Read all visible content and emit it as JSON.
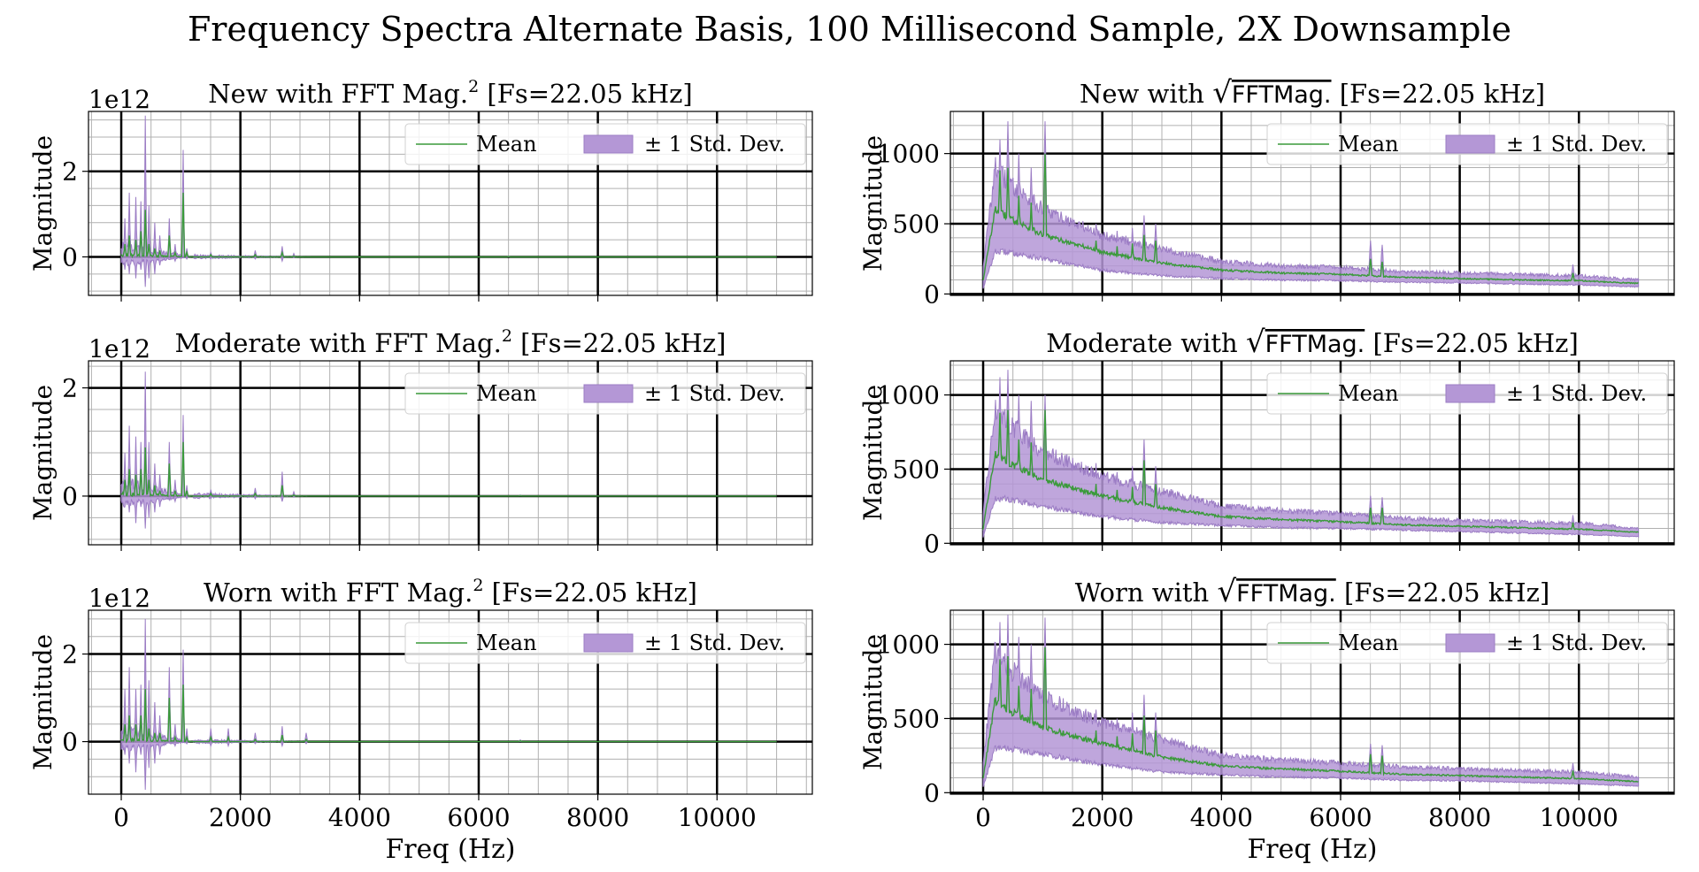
{
  "figure": {
    "title": "Frequency Spectra Alternate Basis, 100 Millisecond Sample, 2X Downsample"
  },
  "colors": {
    "mean_line": "#3a9a3a",
    "band_fill": "#b497d6",
    "band_edge": "#9b7cc4",
    "major_grid": "#000000",
    "minor_grid": "#b0b0b0"
  },
  "chart_data": [
    {
      "type": "area",
      "title_prefix": "New with FFT Mag.",
      "title_sup": "2",
      "title_sqrt": "",
      "title_suffix": " [Fs=22.05 kHz]",
      "ylabel": "Magnitude",
      "xlabel": "",
      "offset_text": "1e12",
      "xlim": [
        -550,
        11600
      ],
      "ylim": [
        -0.9,
        3.4
      ],
      "xticks": [
        0,
        2000,
        4000,
        6000,
        8000,
        10000
      ],
      "yticks": [
        0,
        2
      ],
      "ytick_labels": [
        "0",
        "2"
      ],
      "grid": true,
      "legend": "upper right",
      "legend_entries": [
        "Mean",
        "± 1 Std. Dev."
      ],
      "peaks": [
        {
          "x": 0,
          "mean": 0
        },
        {
          "x": 60,
          "mean": 0.3,
          "upper": 0.9,
          "lower": -0.3
        },
        {
          "x": 140,
          "mean": 0.5,
          "upper": 1.5,
          "lower": -0.4
        },
        {
          "x": 250,
          "mean": 0.4,
          "upper": 1.4,
          "lower": -0.5
        },
        {
          "x": 330,
          "mean": 0.6,
          "upper": 1.3,
          "lower": -0.3
        },
        {
          "x": 400,
          "mean": 1.1,
          "upper": 3.3,
          "lower": -0.7
        },
        {
          "x": 470,
          "mean": 0.3,
          "upper": 1.2,
          "lower": -0.5
        },
        {
          "x": 560,
          "mean": 0.2,
          "upper": 0.8,
          "lower": -0.4
        },
        {
          "x": 650,
          "mean": 0.15,
          "upper": 0.5,
          "lower": -0.2
        },
        {
          "x": 810,
          "mean": 0.5,
          "upper": 0.9,
          "lower": 0.1
        },
        {
          "x": 900,
          "mean": 0.1,
          "upper": 0.3,
          "lower": -0.1
        },
        {
          "x": 1040,
          "mean": 1.5,
          "upper": 2.5,
          "lower": 0.2
        },
        {
          "x": 1100,
          "mean": 0.1,
          "upper": 0.2,
          "lower": -0.05
        },
        {
          "x": 1500,
          "mean": 0.05,
          "upper": 0.1,
          "lower": -0.05
        },
        {
          "x": 2250,
          "mean": 0.05,
          "upper": 0.15,
          "lower": -0.05
        },
        {
          "x": 2700,
          "mean": 0.1,
          "upper": 0.25,
          "lower": -0.1
        },
        {
          "x": 2900,
          "mean": 0.02,
          "upper": 0.08,
          "lower": -0.02
        },
        {
          "x": 6500,
          "mean": 0.01,
          "upper": 0.02,
          "lower": 0
        },
        {
          "x": 11000,
          "mean": 0,
          "upper": 0,
          "lower": 0
        }
      ]
    },
    {
      "type": "area",
      "title_prefix": "New with ",
      "title_sup": "",
      "title_sqrt": "FFTMag.",
      "title_suffix": " [Fs=22.05 kHz]",
      "ylabel": "Magnitude",
      "xlabel": "",
      "offset_text": "",
      "xlim": [
        -550,
        11600
      ],
      "ylim": [
        -10,
        1300
      ],
      "xticks": [
        0,
        2000,
        4000,
        6000,
        8000,
        10000
      ],
      "yticks": [
        0,
        500,
        1000
      ],
      "ytick_labels": [
        "0",
        "500",
        "1000"
      ],
      "grid": true,
      "legend": "upper right",
      "legend_entries": [
        "Mean",
        "± 1 Std. Dev."
      ],
      "envelope": [
        {
          "x": 0,
          "mean": 100,
          "upper": 200,
          "lower": 40
        },
        {
          "x": 200,
          "mean": 600,
          "upper": 900,
          "lower": 300
        },
        {
          "x": 400,
          "mean": 550,
          "upper": 800,
          "lower": 300
        },
        {
          "x": 1000,
          "mean": 420,
          "upper": 600,
          "lower": 250
        },
        {
          "x": 2000,
          "mean": 300,
          "upper": 420,
          "lower": 170
        },
        {
          "x": 3000,
          "mean": 220,
          "upper": 320,
          "lower": 130
        },
        {
          "x": 4000,
          "mean": 170,
          "upper": 230,
          "lower": 110
        },
        {
          "x": 5000,
          "mean": 150,
          "upper": 200,
          "lower": 100
        },
        {
          "x": 6000,
          "mean": 140,
          "upper": 190,
          "lower": 95
        },
        {
          "x": 7000,
          "mean": 120,
          "upper": 160,
          "lower": 85
        },
        {
          "x": 8000,
          "mean": 110,
          "upper": 150,
          "lower": 80
        },
        {
          "x": 9000,
          "mean": 100,
          "upper": 140,
          "lower": 70
        },
        {
          "x": 10000,
          "mean": 95,
          "upper": 130,
          "lower": 65
        },
        {
          "x": 11000,
          "mean": 75,
          "upper": 100,
          "lower": 50
        }
      ],
      "peaks": [
        {
          "x": 280,
          "mean": 880,
          "upper": 1100
        },
        {
          "x": 420,
          "mean": 900,
          "upper": 1230
        },
        {
          "x": 600,
          "mean": 700,
          "upper": 1000
        },
        {
          "x": 810,
          "mean": 650,
          "upper": 900
        },
        {
          "x": 1040,
          "mean": 1000,
          "upper": 1230
        },
        {
          "x": 1900,
          "mean": 380,
          "upper": 500
        },
        {
          "x": 2250,
          "mean": 340,
          "upper": 450
        },
        {
          "x": 2500,
          "mean": 360,
          "upper": 470
        },
        {
          "x": 2700,
          "mean": 420,
          "upper": 560
        },
        {
          "x": 2900,
          "mean": 380,
          "upper": 500
        },
        {
          "x": 6500,
          "mean": 250,
          "upper": 380
        },
        {
          "x": 6700,
          "mean": 230,
          "upper": 350
        },
        {
          "x": 9900,
          "mean": 150,
          "upper": 210
        }
      ]
    },
    {
      "type": "area",
      "title_prefix": "Moderate with FFT Mag.",
      "title_sup": "2",
      "title_sqrt": "",
      "title_suffix": " [Fs=22.05 kHz]",
      "ylabel": "Magnitude",
      "xlabel": "",
      "offset_text": "1e12",
      "xlim": [
        -550,
        11600
      ],
      "ylim": [
        -0.9,
        2.5
      ],
      "xticks": [
        0,
        2000,
        4000,
        6000,
        8000,
        10000
      ],
      "yticks": [
        0,
        2
      ],
      "ytick_labels": [
        "0",
        "2"
      ],
      "grid": true,
      "legend": "upper right",
      "legend_entries": [
        "Mean",
        "± 1 Std. Dev."
      ],
      "peaks": [
        {
          "x": 0,
          "mean": 0
        },
        {
          "x": 60,
          "mean": 0.3,
          "upper": 0.8,
          "lower": -0.2
        },
        {
          "x": 140,
          "mean": 0.5,
          "upper": 1.3,
          "lower": -0.3
        },
        {
          "x": 250,
          "mean": 0.4,
          "upper": 1.1,
          "lower": -0.5
        },
        {
          "x": 330,
          "mean": 0.5,
          "upper": 1.0,
          "lower": -0.2
        },
        {
          "x": 400,
          "mean": 0.9,
          "upper": 2.3,
          "lower": -0.6
        },
        {
          "x": 470,
          "mean": 0.3,
          "upper": 1.0,
          "lower": -0.4
        },
        {
          "x": 560,
          "mean": 0.2,
          "upper": 0.6,
          "lower": -0.3
        },
        {
          "x": 650,
          "mean": 0.1,
          "upper": 0.4,
          "lower": -0.2
        },
        {
          "x": 810,
          "mean": 0.6,
          "upper": 1.0,
          "lower": 0.1
        },
        {
          "x": 900,
          "mean": 0.1,
          "upper": 0.3,
          "lower": -0.1
        },
        {
          "x": 1040,
          "mean": 1.0,
          "upper": 1.5,
          "lower": 0.2
        },
        {
          "x": 1100,
          "mean": 0.1,
          "upper": 0.2,
          "lower": -0.05
        },
        {
          "x": 1500,
          "mean": 0.05,
          "upper": 0.12,
          "lower": -0.05
        },
        {
          "x": 2250,
          "mean": 0.05,
          "upper": 0.15,
          "lower": -0.05
        },
        {
          "x": 2700,
          "mean": 0.2,
          "upper": 0.45,
          "lower": -0.1
        },
        {
          "x": 2900,
          "mean": 0.02,
          "upper": 0.08,
          "lower": -0.02
        },
        {
          "x": 6700,
          "mean": 0.01,
          "upper": 0.02,
          "lower": 0
        },
        {
          "x": 11000,
          "mean": 0,
          "upper": 0,
          "lower": 0
        }
      ]
    },
    {
      "type": "area",
      "title_prefix": "Moderate with ",
      "title_sup": "",
      "title_sqrt": "FFTMag.",
      "title_suffix": " [Fs=22.05 kHz]",
      "ylabel": "Magnitude",
      "xlabel": "",
      "offset_text": "",
      "xlim": [
        -550,
        11600
      ],
      "ylim": [
        -10,
        1230
      ],
      "xticks": [
        0,
        2000,
        4000,
        6000,
        8000,
        10000
      ],
      "yticks": [
        0,
        500,
        1000
      ],
      "ytick_labels": [
        "0",
        "500",
        "1000"
      ],
      "grid": true,
      "legend": "upper right",
      "legend_entries": [
        "Mean",
        "± 1 Std. Dev."
      ],
      "envelope": [
        {
          "x": 0,
          "mean": 100,
          "upper": 200,
          "lower": 40
        },
        {
          "x": 200,
          "mean": 600,
          "upper": 900,
          "lower": 300
        },
        {
          "x": 400,
          "mean": 550,
          "upper": 820,
          "lower": 300
        },
        {
          "x": 1000,
          "mean": 430,
          "upper": 620,
          "lower": 250
        },
        {
          "x": 2000,
          "mean": 320,
          "upper": 450,
          "lower": 180
        },
        {
          "x": 3000,
          "mean": 240,
          "upper": 350,
          "lower": 140
        },
        {
          "x": 4000,
          "mean": 180,
          "upper": 250,
          "lower": 120
        },
        {
          "x": 5000,
          "mean": 160,
          "upper": 220,
          "lower": 105
        },
        {
          "x": 6000,
          "mean": 145,
          "upper": 200,
          "lower": 100
        },
        {
          "x": 7000,
          "mean": 125,
          "upper": 170,
          "lower": 90
        },
        {
          "x": 8000,
          "mean": 115,
          "upper": 155,
          "lower": 80
        },
        {
          "x": 9000,
          "mean": 105,
          "upper": 145,
          "lower": 70
        },
        {
          "x": 10000,
          "mean": 95,
          "upper": 135,
          "lower": 60
        },
        {
          "x": 11000,
          "mean": 75,
          "upper": 100,
          "lower": 45
        }
      ],
      "peaks": [
        {
          "x": 280,
          "mean": 880,
          "upper": 1120
        },
        {
          "x": 420,
          "mean": 900,
          "upper": 1170
        },
        {
          "x": 600,
          "mean": 700,
          "upper": 1000
        },
        {
          "x": 810,
          "mean": 680,
          "upper": 960
        },
        {
          "x": 1040,
          "mean": 900,
          "upper": 1000
        },
        {
          "x": 1900,
          "mean": 400,
          "upper": 540
        },
        {
          "x": 2250,
          "mean": 360,
          "upper": 480
        },
        {
          "x": 2500,
          "mean": 380,
          "upper": 520
        },
        {
          "x": 2700,
          "mean": 560,
          "upper": 700
        },
        {
          "x": 2900,
          "mean": 400,
          "upper": 520
        },
        {
          "x": 6500,
          "mean": 240,
          "upper": 320
        },
        {
          "x": 6700,
          "mean": 240,
          "upper": 310
        },
        {
          "x": 9900,
          "mean": 140,
          "upper": 190
        }
      ]
    },
    {
      "type": "area",
      "title_prefix": "Worn with FFT Mag.",
      "title_sup": "2",
      "title_sqrt": "",
      "title_suffix": " [Fs=22.05 kHz]",
      "ylabel": "Magnitude",
      "xlabel": "Freq (Hz)",
      "offset_text": "1e12",
      "xlim": [
        -550,
        11600
      ],
      "ylim": [
        -1.2,
        3.0
      ],
      "xticks": [
        0,
        2000,
        4000,
        6000,
        8000,
        10000
      ],
      "yticks": [
        0,
        2
      ],
      "ytick_labels": [
        "0",
        "2"
      ],
      "grid": true,
      "legend": "upper right",
      "legend_entries": [
        "Mean",
        "± 1 Std. Dev."
      ],
      "peaks": [
        {
          "x": 0,
          "mean": 0
        },
        {
          "x": 60,
          "mean": 0.4,
          "upper": 1.2,
          "lower": -0.3
        },
        {
          "x": 140,
          "mean": 0.6,
          "upper": 1.7,
          "lower": -0.5
        },
        {
          "x": 250,
          "mean": 0.4,
          "upper": 1.2,
          "lower": -0.7
        },
        {
          "x": 330,
          "mean": 0.6,
          "upper": 1.3,
          "lower": -0.3
        },
        {
          "x": 400,
          "mean": 1.2,
          "upper": 2.8,
          "lower": -1.1
        },
        {
          "x": 470,
          "mean": 0.3,
          "upper": 1.4,
          "lower": -0.6
        },
        {
          "x": 560,
          "mean": 0.2,
          "upper": 0.9,
          "lower": -0.5
        },
        {
          "x": 650,
          "mean": 0.2,
          "upper": 0.6,
          "lower": -0.3
        },
        {
          "x": 810,
          "mean": 1.0,
          "upper": 1.7,
          "lower": 0.2
        },
        {
          "x": 900,
          "mean": 0.1,
          "upper": 0.4,
          "lower": -0.1
        },
        {
          "x": 1040,
          "mean": 1.3,
          "upper": 2.1,
          "lower": 0.2
        },
        {
          "x": 1100,
          "mean": 0.1,
          "upper": 0.3,
          "lower": -0.05
        },
        {
          "x": 1500,
          "mean": 0.1,
          "upper": 0.3,
          "lower": -0.1
        },
        {
          "x": 1800,
          "mean": 0.1,
          "upper": 0.3,
          "lower": -0.1
        },
        {
          "x": 2250,
          "mean": 0.05,
          "upper": 0.2,
          "lower": -0.05
        },
        {
          "x": 2700,
          "mean": 0.15,
          "upper": 0.35,
          "lower": -0.1
        },
        {
          "x": 3100,
          "mean": 0.05,
          "upper": 0.2,
          "lower": -0.05
        },
        {
          "x": 6700,
          "mean": 0.02,
          "upper": 0.04,
          "lower": 0
        },
        {
          "x": 11000,
          "mean": 0,
          "upper": 0,
          "lower": 0
        }
      ]
    },
    {
      "type": "area",
      "title_prefix": "Worn with ",
      "title_sup": "",
      "title_sqrt": "FFTMag.",
      "title_suffix": " [Fs=22.05 kHz]",
      "ylabel": "Magnitude",
      "xlabel": "Freq (Hz)",
      "offset_text": "",
      "xlim": [
        -550,
        11600
      ],
      "ylim": [
        -10,
        1230
      ],
      "xticks": [
        0,
        2000,
        4000,
        6000,
        8000,
        10000
      ],
      "yticks": [
        0,
        500,
        1000
      ],
      "ytick_labels": [
        "0",
        "500",
        "1000"
      ],
      "grid": true,
      "legend": "upper right",
      "legend_entries": [
        "Mean",
        "± 1 Std. Dev."
      ],
      "envelope": [
        {
          "x": 0,
          "mean": 100,
          "upper": 200,
          "lower": 40
        },
        {
          "x": 200,
          "mean": 620,
          "upper": 950,
          "lower": 300
        },
        {
          "x": 400,
          "mean": 560,
          "upper": 850,
          "lower": 300
        },
        {
          "x": 1000,
          "mean": 440,
          "upper": 650,
          "lower": 260
        },
        {
          "x": 2000,
          "mean": 330,
          "upper": 470,
          "lower": 190
        },
        {
          "x": 3000,
          "mean": 240,
          "upper": 360,
          "lower": 140
        },
        {
          "x": 4000,
          "mean": 180,
          "upper": 250,
          "lower": 120
        },
        {
          "x": 5000,
          "mean": 160,
          "upper": 220,
          "lower": 105
        },
        {
          "x": 6000,
          "mean": 145,
          "upper": 200,
          "lower": 100
        },
        {
          "x": 7000,
          "mean": 125,
          "upper": 175,
          "lower": 85
        },
        {
          "x": 8000,
          "mean": 115,
          "upper": 160,
          "lower": 80
        },
        {
          "x": 9000,
          "mean": 105,
          "upper": 150,
          "lower": 70
        },
        {
          "x": 10000,
          "mean": 95,
          "upper": 140,
          "lower": 60
        },
        {
          "x": 11000,
          "mean": 75,
          "upper": 105,
          "lower": 45
        }
      ],
      "peaks": [
        {
          "x": 280,
          "mean": 900,
          "upper": 1150
        },
        {
          "x": 420,
          "mean": 920,
          "upper": 1200
        },
        {
          "x": 600,
          "mean": 720,
          "upper": 1050
        },
        {
          "x": 810,
          "mean": 700,
          "upper": 1000
        },
        {
          "x": 1040,
          "mean": 980,
          "upper": 1180
        },
        {
          "x": 1900,
          "mean": 420,
          "upper": 560
        },
        {
          "x": 2250,
          "mean": 380,
          "upper": 500
        },
        {
          "x": 2500,
          "mean": 400,
          "upper": 540
        },
        {
          "x": 2700,
          "mean": 520,
          "upper": 660
        },
        {
          "x": 2900,
          "mean": 420,
          "upper": 540
        },
        {
          "x": 6500,
          "mean": 260,
          "upper": 330
        },
        {
          "x": 6700,
          "mean": 250,
          "upper": 320
        },
        {
          "x": 9900,
          "mean": 150,
          "upper": 200
        }
      ]
    }
  ]
}
